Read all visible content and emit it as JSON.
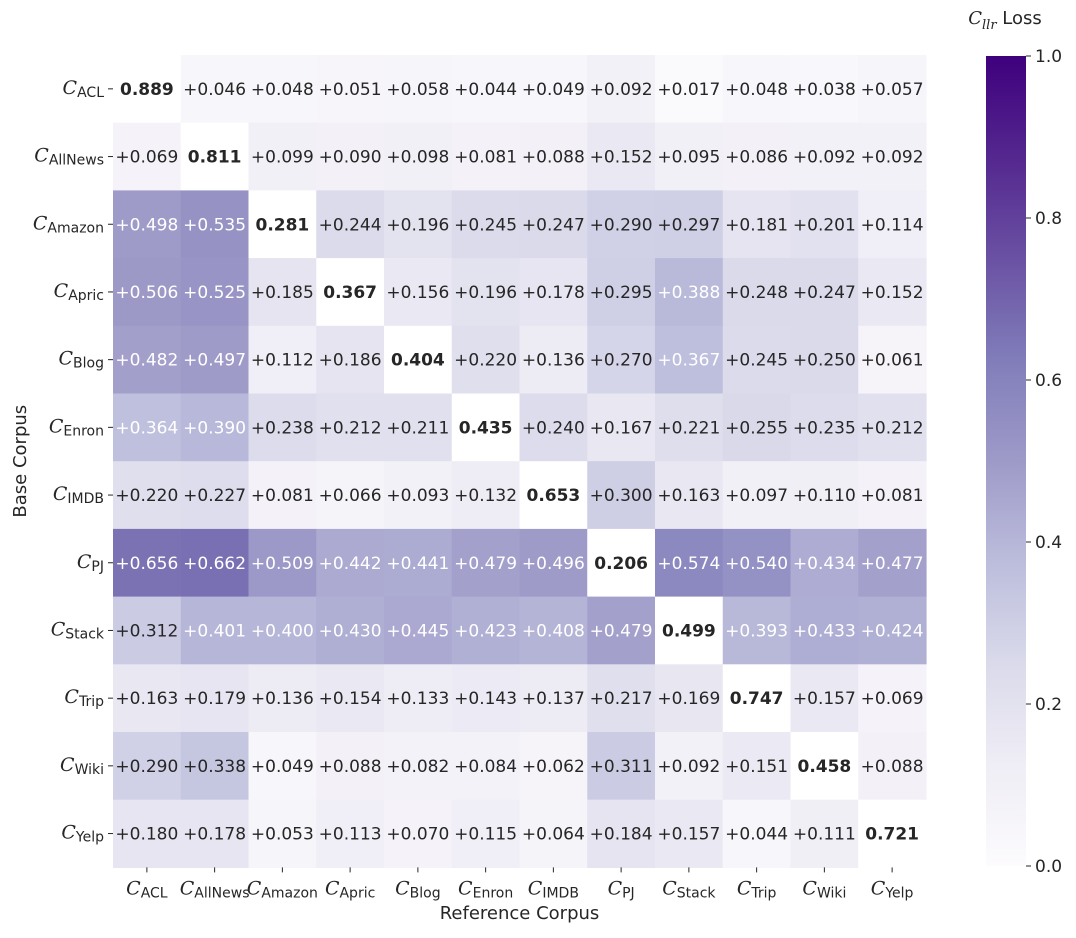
{
  "chart_data": {
    "type": "heatmap",
    "xlabel": "Reference Corpus",
    "ylabel": "Base Corpus",
    "colorbar": {
      "title_main": "C",
      "title_sub": "llr",
      "title_suffix": " Loss",
      "range": [
        0.0,
        1.0
      ],
      "ticks": [
        0.0,
        0.2,
        0.4,
        0.6,
        0.8,
        1.0
      ],
      "tick_labels": [
        "0.0",
        "0.2",
        "0.4",
        "0.6",
        "0.8",
        "1.0"
      ],
      "colormap": "Purples",
      "color_low": "#fcfbfd",
      "color_high": "#3f007d"
    },
    "label_prefix": "C",
    "categories": [
      "ACL",
      "AllNews",
      "Amazon",
      "Apric",
      "Blog",
      "Enron",
      "IMDB",
      "PJ",
      "Stack",
      "Trip",
      "Wiki",
      "Yelp"
    ],
    "rows": [
      "ACL",
      "AllNews",
      "Amazon",
      "Apric",
      "Blog",
      "Enron",
      "IMDB",
      "PJ",
      "Stack",
      "Trip",
      "Wiki",
      "Yelp"
    ],
    "values": [
      [
        0.889,
        0.046,
        0.048,
        0.051,
        0.058,
        0.044,
        0.049,
        0.092,
        0.017,
        0.048,
        0.038,
        0.057
      ],
      [
        0.069,
        0.811,
        0.099,
        0.09,
        0.098,
        0.081,
        0.088,
        0.152,
        0.095,
        0.086,
        0.092,
        0.092
      ],
      [
        0.498,
        0.535,
        0.281,
        0.244,
        0.196,
        0.245,
        0.247,
        0.29,
        0.297,
        0.181,
        0.201,
        0.114
      ],
      [
        0.506,
        0.525,
        0.185,
        0.367,
        0.156,
        0.196,
        0.178,
        0.295,
        0.388,
        0.248,
        0.247,
        0.152
      ],
      [
        0.482,
        0.497,
        0.112,
        0.186,
        0.404,
        0.22,
        0.136,
        0.27,
        0.367,
        0.245,
        0.25,
        0.061
      ],
      [
        0.364,
        0.39,
        0.238,
        0.212,
        0.211,
        0.435,
        0.24,
        0.167,
        0.221,
        0.255,
        0.235,
        0.212
      ],
      [
        0.22,
        0.227,
        0.081,
        0.066,
        0.093,
        0.132,
        0.653,
        0.3,
        0.163,
        0.097,
        0.11,
        0.081
      ],
      [
        0.656,
        0.662,
        0.509,
        0.442,
        0.441,
        0.479,
        0.496,
        0.206,
        0.574,
        0.54,
        0.434,
        0.477
      ],
      [
        0.312,
        0.401,
        0.4,
        0.43,
        0.445,
        0.423,
        0.408,
        0.479,
        0.499,
        0.393,
        0.433,
        0.424
      ],
      [
        0.163,
        0.179,
        0.136,
        0.154,
        0.133,
        0.143,
        0.137,
        0.217,
        0.169,
        0.747,
        0.157,
        0.069
      ],
      [
        0.29,
        0.338,
        0.049,
        0.088,
        0.082,
        0.084,
        0.062,
        0.311,
        0.092,
        0.151,
        0.458,
        0.088
      ],
      [
        0.18,
        0.178,
        0.053,
        0.113,
        0.07,
        0.115,
        0.064,
        0.184,
        0.157,
        0.044,
        0.111,
        0.721
      ]
    ],
    "cell_labels": [
      [
        "0.889",
        "+0.046",
        "+0.048",
        "+0.051",
        "+0.058",
        "+0.044",
        "+0.049",
        "+0.092",
        "+0.017",
        "+0.048",
        "+0.038",
        "+0.057"
      ],
      [
        "+0.069",
        "0.811",
        "+0.099",
        "+0.090",
        "+0.098",
        "+0.081",
        "+0.088",
        "+0.152",
        "+0.095",
        "+0.086",
        "+0.092",
        "+0.092"
      ],
      [
        "+0.498",
        "+0.535",
        "0.281",
        "+0.244",
        "+0.196",
        "+0.245",
        "+0.247",
        "+0.290",
        "+0.297",
        "+0.181",
        "+0.201",
        "+0.114"
      ],
      [
        "+0.506",
        "+0.525",
        "+0.185",
        "0.367",
        "+0.156",
        "+0.196",
        "+0.178",
        "+0.295",
        "+0.388",
        "+0.248",
        "+0.247",
        "+0.152"
      ],
      [
        "+0.482",
        "+0.497",
        "+0.112",
        "+0.186",
        "0.404",
        "+0.220",
        "+0.136",
        "+0.270",
        "+0.367",
        "+0.245",
        "+0.250",
        "+0.061"
      ],
      [
        "+0.364",
        "+0.390",
        "+0.238",
        "+0.212",
        "+0.211",
        "0.435",
        "+0.240",
        "+0.167",
        "+0.221",
        "+0.255",
        "+0.235",
        "+0.212"
      ],
      [
        "+0.220",
        "+0.227",
        "+0.081",
        "+0.066",
        "+0.093",
        "+0.132",
        "0.653",
        "+0.300",
        "+0.163",
        "+0.097",
        "+0.110",
        "+0.081"
      ],
      [
        "+0.656",
        "+0.662",
        "+0.509",
        "+0.442",
        "+0.441",
        "+0.479",
        "+0.496",
        "0.206",
        "+0.574",
        "+0.540",
        "+0.434",
        "+0.477"
      ],
      [
        "+0.312",
        "+0.401",
        "+0.400",
        "+0.430",
        "+0.445",
        "+0.423",
        "+0.408",
        "+0.479",
        "0.499",
        "+0.393",
        "+0.433",
        "+0.424"
      ],
      [
        "+0.163",
        "+0.179",
        "+0.136",
        "+0.154",
        "+0.133",
        "+0.143",
        "+0.137",
        "+0.217",
        "+0.169",
        "0.747",
        "+0.157",
        "+0.069"
      ],
      [
        "+0.290",
        "+0.338",
        "+0.049",
        "+0.088",
        "+0.082",
        "+0.084",
        "+0.062",
        "+0.311",
        "+0.092",
        "+0.151",
        "0.458",
        "+0.088"
      ],
      [
        "+0.180",
        "+0.178",
        "+0.053",
        "+0.113",
        "+0.070",
        "+0.115",
        "+0.064",
        "+0.184",
        "+0.157",
        "+0.044",
        "+0.111",
        "0.721"
      ]
    ],
    "diagonal_bold": true,
    "diagonal_fill": "#ffffff",
    "text_dark": "#262626",
    "text_light": "#ffffff",
    "grid": false
  }
}
